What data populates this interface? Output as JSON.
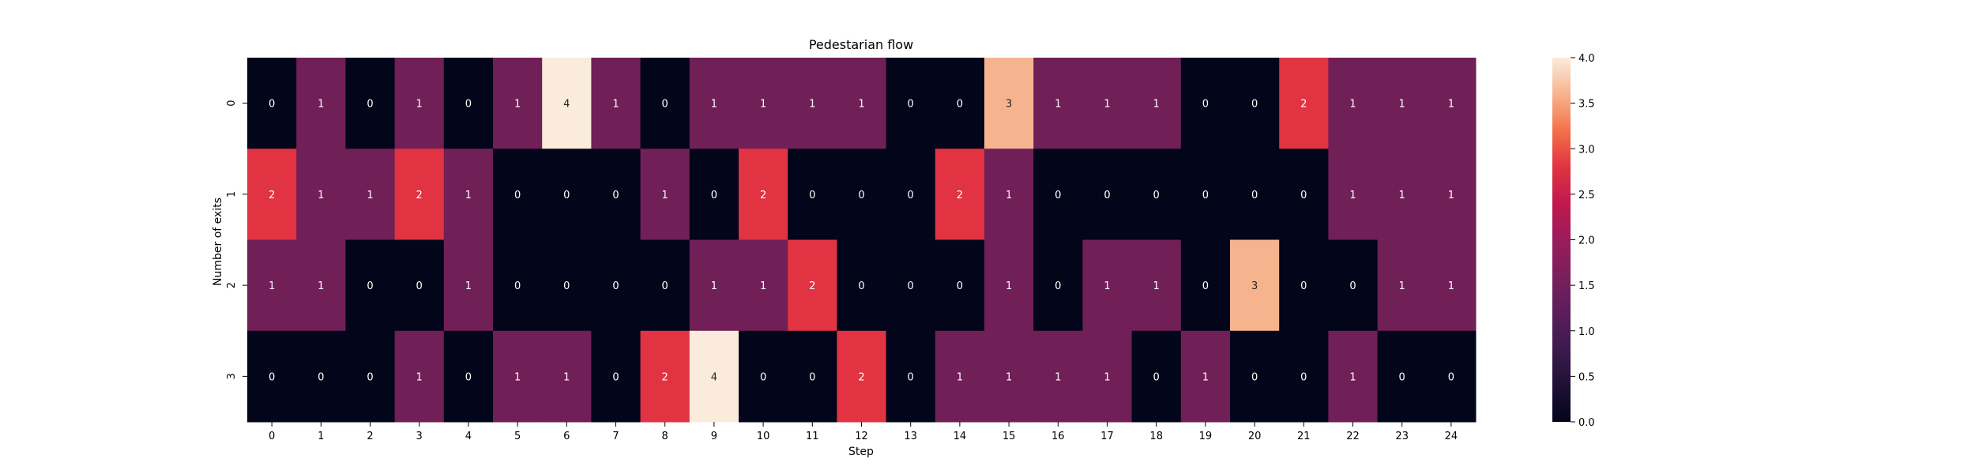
{
  "chart_data": {
    "type": "heatmap",
    "title": "Pedestarian flow",
    "xlabel": "Step",
    "ylabel": "Number of exits",
    "x_categories": [
      "0",
      "1",
      "2",
      "3",
      "4",
      "5",
      "6",
      "7",
      "8",
      "9",
      "10",
      "11",
      "12",
      "13",
      "14",
      "15",
      "16",
      "17",
      "18",
      "19",
      "20",
      "21",
      "22",
      "23",
      "24"
    ],
    "y_categories": [
      "0",
      "1",
      "2",
      "3"
    ],
    "values": [
      [
        0,
        1,
        0,
        1,
        0,
        1,
        4,
        1,
        0,
        1,
        1,
        1,
        1,
        0,
        0,
        3,
        1,
        1,
        1,
        0,
        0,
        2,
        1,
        1,
        1
      ],
      [
        2,
        1,
        1,
        2,
        1,
        0,
        0,
        0,
        1,
        0,
        2,
        0,
        0,
        0,
        2,
        1,
        0,
        0,
        0,
        0,
        0,
        0,
        1,
        1,
        1
      ],
      [
        1,
        1,
        0,
        0,
        1,
        0,
        0,
        0,
        0,
        1,
        1,
        2,
        0,
        0,
        0,
        1,
        0,
        1,
        1,
        0,
        3,
        0,
        0,
        1,
        1
      ],
      [
        0,
        0,
        0,
        1,
        0,
        1,
        1,
        0,
        2,
        4,
        0,
        0,
        2,
        0,
        1,
        1,
        1,
        1,
        0,
        1,
        0,
        0,
        1,
        0,
        0
      ]
    ],
    "value_range": [
      0,
      4
    ],
    "colorbar": {
      "ticks": [
        "0.0",
        "0.5",
        "1.0",
        "1.5",
        "2.0",
        "2.5",
        "3.0",
        "3.5",
        "4.0"
      ],
      "colormap": "rocket",
      "cell_colors": {
        "0": "#03051a",
        "1": "#701f57",
        "2": "#e13342",
        "3": "#f6b48e",
        "4": "#faebdd"
      }
    },
    "annotations": "cell values shown",
    "grid": false,
    "legend": "colorbar-right"
  }
}
